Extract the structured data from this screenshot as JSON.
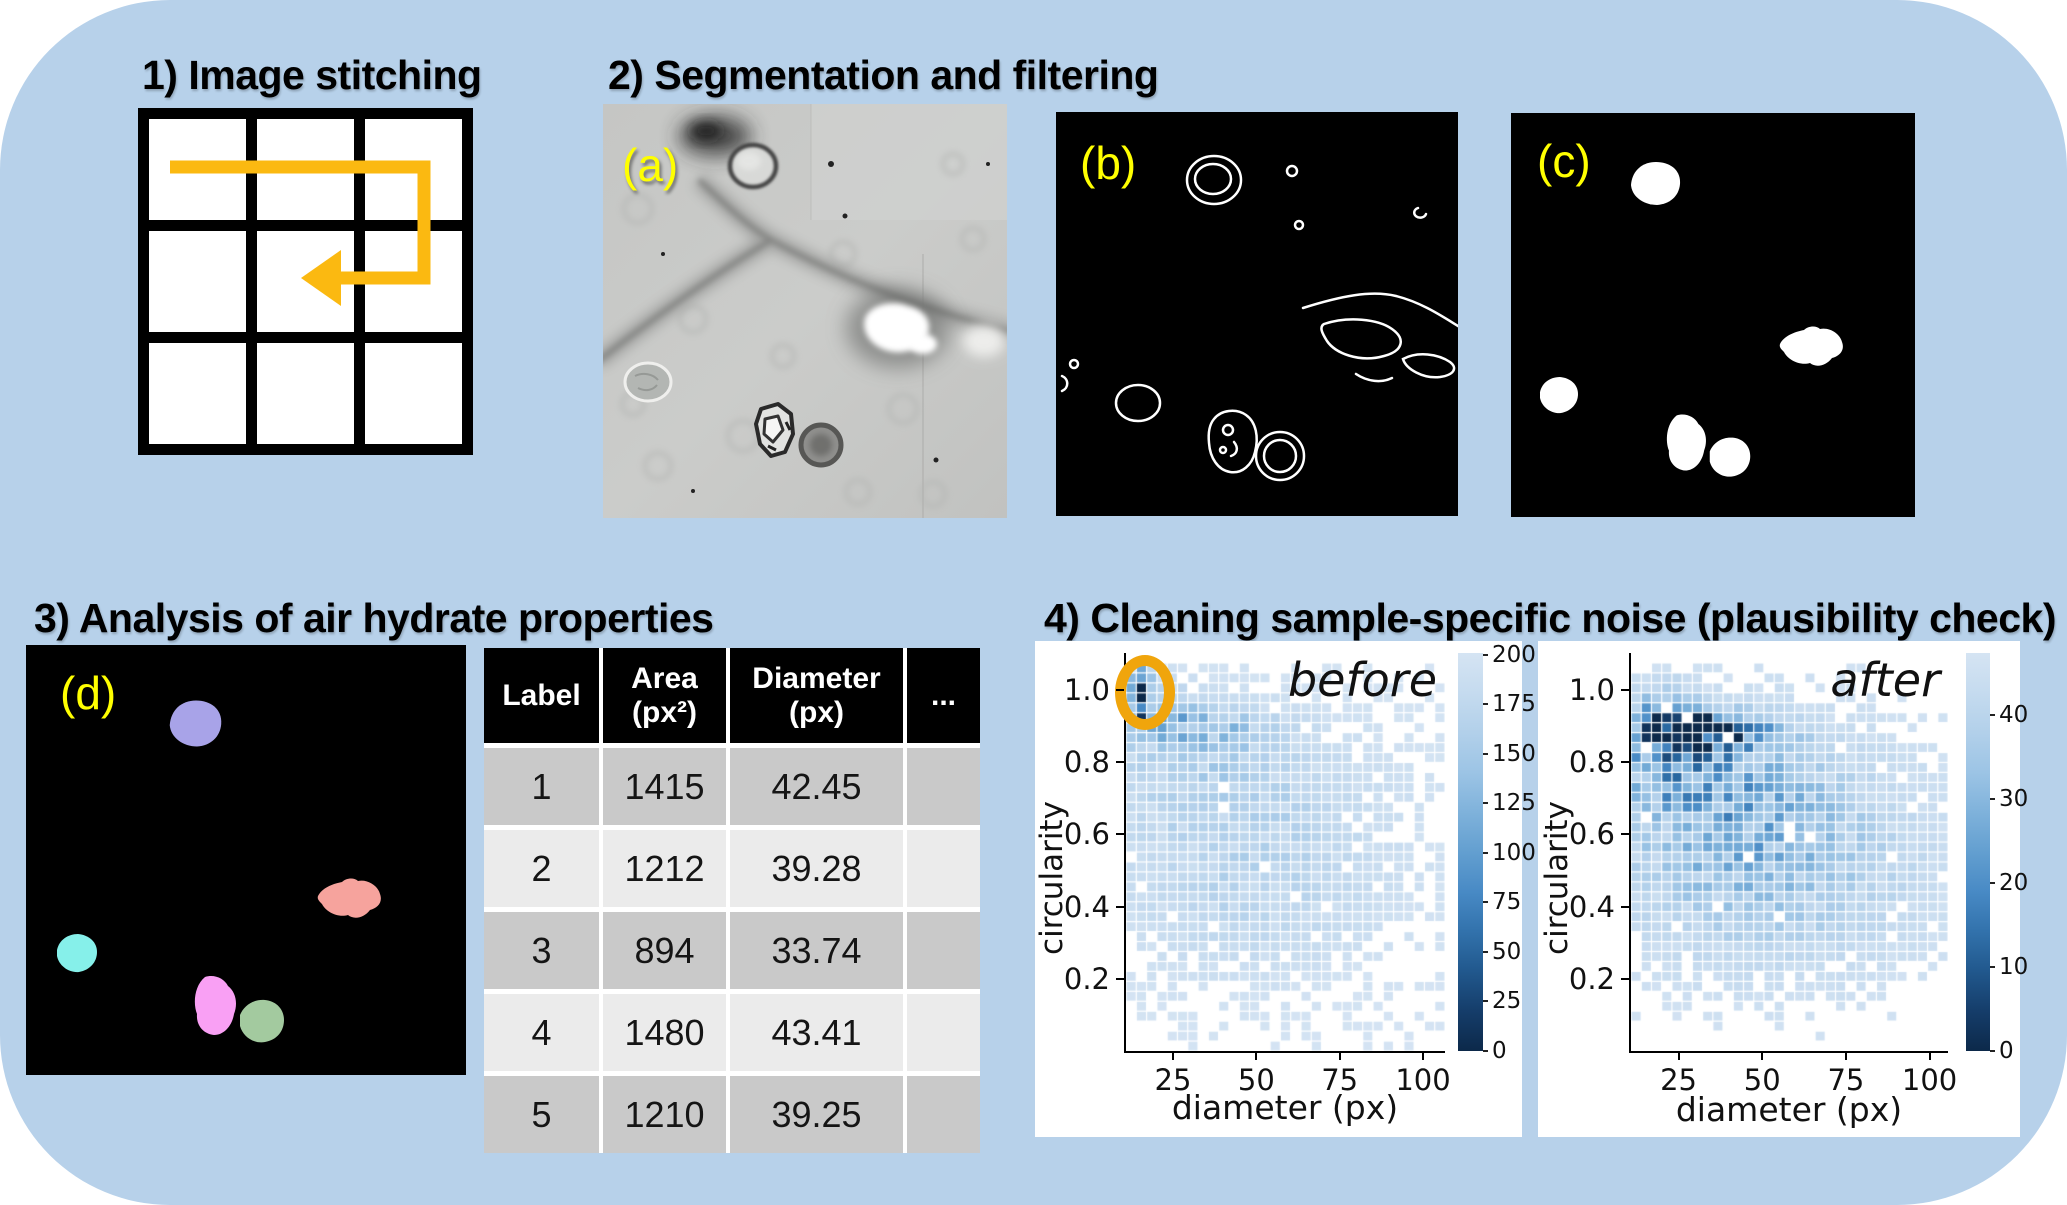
{
  "colors": {
    "outer_background": "#ffffff",
    "panel_blue": "#b7d1ea",
    "heading_text": "#000000",
    "label_yellow": "#ffff00",
    "arrow_gold": "#fbb911",
    "annotation_orange": "#f0a50c",
    "table_header_bg": "#000000",
    "table_header_text": "#ffffff",
    "table_row_dark": "#c9c9c9",
    "table_row_light": "#ebebeb",
    "heatmap_low": "#d5e4f3",
    "heatmap_high": "#0c294a"
  },
  "headings": {
    "s1": "1) Image stitching",
    "s2": "2) Segmentation and filtering",
    "s3": "3) Analysis of air hydrate properties",
    "s4": "4) Cleaning sample-specific noise (plausibility check)"
  },
  "panel_labels": {
    "a": "(a)",
    "b": "(b)",
    "c": "(c)",
    "d": "(d)"
  },
  "stitch_grid": {
    "rows": 3,
    "cols": 3,
    "scan_path": "right across top row, down, back left (serpentine)"
  },
  "table": {
    "headers": [
      {
        "lines": [
          "Label"
        ]
      },
      {
        "lines": [
          "Area",
          "(px²)"
        ]
      },
      {
        "lines": [
          "Diameter",
          "(px)"
        ]
      },
      {
        "lines": [
          "..."
        ]
      }
    ],
    "rows": [
      {
        "label": "1",
        "area": "1415",
        "diameter": "42.45",
        "more": ""
      },
      {
        "label": "2",
        "area": "1212",
        "diameter": "39.28",
        "more": ""
      },
      {
        "label": "3",
        "area": "894",
        "diameter": "33.74",
        "more": ""
      },
      {
        "label": "4",
        "area": "1480",
        "diameter": "43.41",
        "more": ""
      },
      {
        "label": "5",
        "area": "1210",
        "diameter": "39.25",
        "more": ""
      }
    ]
  },
  "chart_data": [
    {
      "type": "heatmap",
      "title": "before",
      "xlabel": "diameter (px)",
      "ylabel": "circularity",
      "xlim": [
        10.9,
        106.6
      ],
      "ylim": [
        0.0,
        1.103
      ],
      "xticks": [
        25,
        50,
        75,
        100
      ],
      "yticks": [
        "1.0",
        "0.8",
        "0.6",
        "0.4",
        "0.2"
      ],
      "ytick_values": [
        1.0,
        0.8,
        0.6,
        0.4,
        0.2
      ],
      "colorbar_ticks": [
        200,
        175,
        150,
        125,
        100,
        75,
        50,
        25,
        0
      ],
      "colorbar_max": 201,
      "bins": [
        31,
        40
      ],
      "seed": 7,
      "annotation": {
        "shape": "ellipse",
        "x": 15,
        "y": 1.0,
        "note": "implausible spike of ~200 counts at diameter≈15 px, circularity≈1.0 (circled in orange)"
      },
      "density_peaks": [
        {
          "x": 15.5,
          "y": 0.99,
          "sx": 2.0,
          "sy": 0.05,
          "a": 210
        },
        {
          "x": 22,
          "y": 0.95,
          "sx": 6,
          "sy": 0.05,
          "a": 40
        },
        {
          "x": 33,
          "y": 0.895,
          "sx": 15,
          "sy": 0.04,
          "a": 42
        },
        {
          "x": 30,
          "y": 0.8,
          "sx": 17,
          "sy": 0.1,
          "a": 22
        },
        {
          "x": 45,
          "y": 0.7,
          "sx": 25,
          "sy": 0.15,
          "a": 16
        },
        {
          "x": 50,
          "y": 0.52,
          "sx": 28,
          "sy": 0.18,
          "a": 13
        },
        {
          "x": 45,
          "y": 0.38,
          "sx": 26,
          "sy": 0.12,
          "a": 9
        },
        {
          "x": 55,
          "y": 0.6,
          "sx": 44,
          "sy": 0.33,
          "a": 6
        }
      ],
      "description": "2D histogram of air-hydrate circularity vs diameter before plausibility filtering; broad light-blue cloud (counts ~5-40) for diameters 12-105 px, denser band near circularity 0.85-0.95, plus artifact spike (~200 counts) at diameter≈15 px, circularity≈1.0."
    },
    {
      "type": "heatmap",
      "title": "after",
      "xlabel": "diameter (px)",
      "ylabel": "circularity",
      "xlim": [
        10.8,
        105.5
      ],
      "ylim": [
        0.0,
        1.103
      ],
      "xticks": [
        25,
        50,
        75,
        100
      ],
      "yticks": [
        "1.0",
        "0.8",
        "0.6",
        "0.4",
        "0.2"
      ],
      "ytick_values": [
        1.0,
        0.8,
        0.6,
        0.4,
        0.2
      ],
      "colorbar_ticks": [
        40,
        30,
        20,
        10,
        0
      ],
      "colorbar_max": 47.4,
      "bins": [
        31,
        40
      ],
      "seed": 13,
      "annotation": null,
      "density_peaks": [
        {
          "x": 20,
          "y": 0.96,
          "sx": 5,
          "sy": 0.045,
          "a": 16
        },
        {
          "x": 26,
          "y": 0.905,
          "sx": 9,
          "sy": 0.035,
          "a": 26
        },
        {
          "x": 39,
          "y": 0.89,
          "sx": 9,
          "sy": 0.03,
          "a": 22
        },
        {
          "x": 30,
          "y": 0.86,
          "sx": 16,
          "sy": 0.04,
          "a": 16
        },
        {
          "x": 21,
          "y": 0.79,
          "sx": 7,
          "sy": 0.06,
          "a": 14
        },
        {
          "x": 35,
          "y": 0.74,
          "sx": 19,
          "sy": 0.11,
          "a": 10
        },
        {
          "x": 45,
          "y": 0.6,
          "sx": 24,
          "sy": 0.16,
          "a": 8
        },
        {
          "x": 55,
          "y": 0.48,
          "sx": 30,
          "sy": 0.18,
          "a": 5
        },
        {
          "x": 50,
          "y": 0.6,
          "sx": 44,
          "sy": 0.32,
          "a": 3.5
        }
      ],
      "description": "Same 2D histogram after removing sample-specific noise: spike at circularity≈1.0 removed; darkest cells (~40-47 counts) form a band at circularity 0.85-0.95 for diameters 15-55 px."
    }
  ]
}
